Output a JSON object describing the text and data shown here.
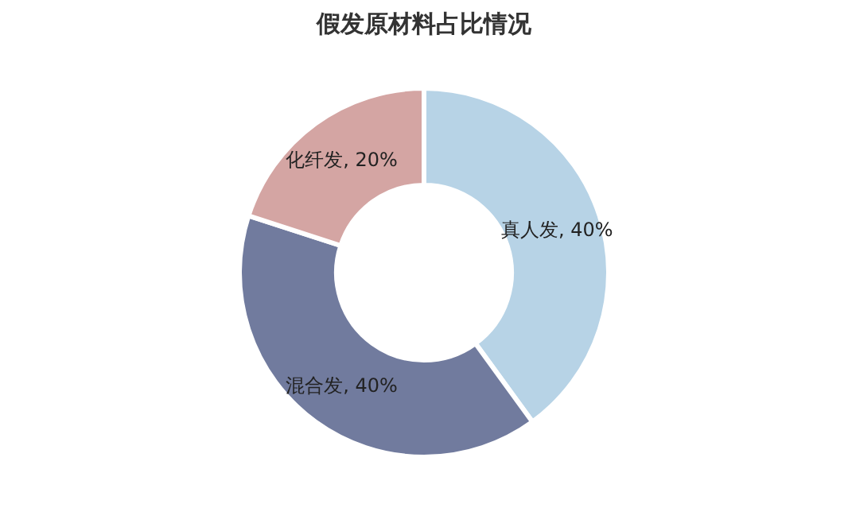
{
  "chart_data": {
    "type": "donut",
    "title": "假发原材料占比情况",
    "categories": [
      "真人发",
      "混合发",
      "化纤发"
    ],
    "values": [
      40,
      40,
      20
    ],
    "colors": [
      "#b7d3e6",
      "#717b9e",
      "#d4a5a3"
    ],
    "value_labels": [
      "40%",
      "40%",
      "20%"
    ],
    "legend": false
  }
}
